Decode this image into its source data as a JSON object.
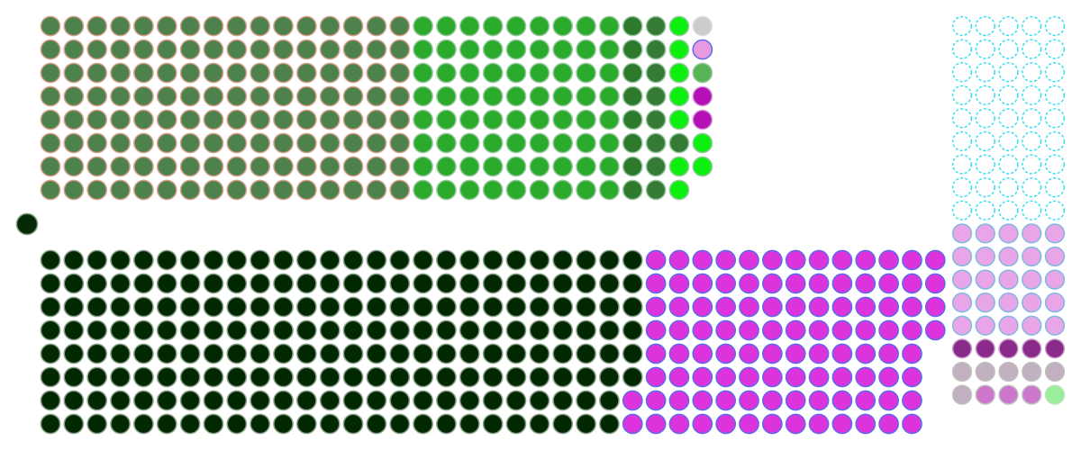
{
  "chart_data": {
    "type": "waffle",
    "title": "",
    "legend": "none",
    "grid": false,
    "blocks": [
      {
        "name": "",
        "rows": 8,
        "row_major": false,
        "segments": [
          {
            "color": "#4d824d",
            "count": 128,
            "edge": "#d9a08f"
          },
          {
            "color": "#2bab2b",
            "count": 72,
            "edge": "#9cc9a3"
          },
          {
            "color": "#2d7a2d",
            "count": 8,
            "edge": "#9cc9a3"
          },
          {
            "color": "#357a35",
            "count": 8,
            "edge": "#9cc9a3"
          },
          {
            "color": "#0fef0f",
            "count": 5,
            "edge": "#9cc9a3"
          },
          {
            "color": "#357a35",
            "count": 1,
            "edge": "#9cc9a3"
          },
          {
            "color": "#0fef0f",
            "count": 2,
            "edge": "#9cc9a3"
          },
          {
            "color": "#cccccc",
            "count": 1,
            "edge": "#e0e0e0"
          },
          {
            "color": "#e89ae0",
            "count": 1,
            "edge": "#5a6be8"
          },
          {
            "color": "#56b456",
            "count": 1,
            "edge": "#9cc9a3"
          },
          {
            "color": "#b510b5",
            "count": 2,
            "edge": "#d9a0d9"
          },
          {
            "color": "#0fef0f",
            "count": 2,
            "edge": "#9cc9a3"
          }
        ]
      },
      {
        "name": "",
        "rows": 1,
        "row_major": false,
        "segments": [
          {
            "color": "#062a06",
            "count": 1,
            "edge": "#7a9a7a"
          }
        ]
      },
      {
        "name": "",
        "rows": 8,
        "row_major": false,
        "segments": [
          {
            "color": "#022802",
            "count": 206,
            "edge": "#8aa08a"
          },
          {
            "color": "#dd33dd",
            "count": 98,
            "edge": "#5b6be8"
          },
          {
            "color": "#dd33dd",
            "count": 4,
            "edge": "#5b6be8"
          }
        ]
      },
      {
        "name": "",
        "rows": 19,
        "row_major": true,
        "segments": [
          {
            "color": "#ffffff",
            "count": 45,
            "edge": "#33e0f0",
            "outline": true
          },
          {
            "color": "#e8a6e8",
            "count": 25,
            "edge": "#7fb8e0"
          },
          {
            "color": "#8a2a8a",
            "count": 5,
            "edge": "#caa0ca"
          },
          {
            "color": "#c0b0c0",
            "count": 5,
            "edge": "#c0c0c0"
          },
          {
            "color": "#c0b0c0",
            "count": 1,
            "edge": "#c0c0c0"
          },
          {
            "color": "#cc77cc",
            "count": 3,
            "edge": "#c0c0c0"
          },
          {
            "color": "#99ee99",
            "count": 1,
            "edge": "#c0e0c0"
          }
        ]
      }
    ]
  }
}
